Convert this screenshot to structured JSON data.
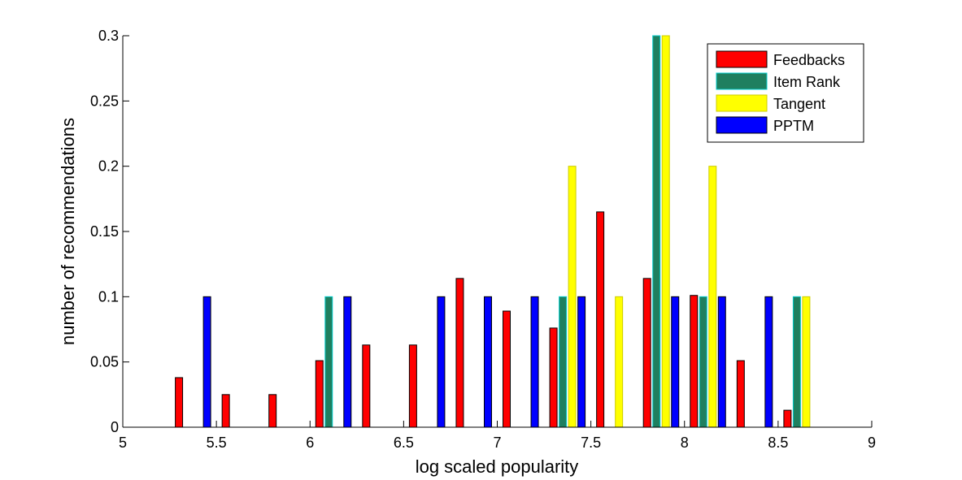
{
  "chart_data": {
    "type": "bar",
    "xlabel": "log scaled popularity",
    "ylabel": "number of recommendations",
    "xlim": [
      5,
      9
    ],
    "ylim": [
      0,
      0.3
    ],
    "xticks": [
      "5",
      "5.5",
      "6",
      "6.5",
      "7",
      "7.5",
      "8",
      "8.5",
      "9"
    ],
    "yticks": [
      "0",
      "0.05",
      "0.1",
      "0.15",
      "0.2",
      "0.25",
      "0.3"
    ],
    "grid": false,
    "legend_position": "top-right",
    "bin_centers": [
      5.125,
      5.375,
      5.625,
      5.875,
      6.125,
      6.375,
      6.625,
      6.875,
      7.125,
      7.375,
      7.625,
      7.875,
      8.125,
      8.375,
      8.625,
      8.875
    ],
    "series": [
      {
        "name": "Feedbacks",
        "color": "#ff0000",
        "edge": "#000000",
        "values": [
          0,
          0.038,
          0.025,
          0.025,
          0.051,
          0.063,
          0.063,
          0.114,
          0.089,
          0.076,
          0.165,
          0.114,
          0.101,
          0.051,
          0.013,
          0
        ]
      },
      {
        "name": "Item Rank",
        "color": "#1f7f5f",
        "edge": "#00cccc",
        "values": [
          0,
          0,
          0,
          0,
          0.1,
          0,
          0,
          0,
          0,
          0.1,
          0,
          0.3,
          0.1,
          0,
          0.1,
          0
        ]
      },
      {
        "name": "Tangent",
        "color": "#ffff00",
        "edge": "#cccc00",
        "values": [
          0,
          0,
          0,
          0,
          0,
          0,
          0,
          0,
          0,
          0.2,
          0.1,
          0.3,
          0.2,
          0,
          0.1,
          0
        ]
      },
      {
        "name": "PPTM",
        "color": "#0000ff",
        "edge": "#000000",
        "values": [
          0,
          0.1,
          0,
          0,
          0.1,
          0,
          0.1,
          0.1,
          0.1,
          0.1,
          0,
          0.1,
          0.1,
          0.1,
          0,
          0
        ]
      }
    ]
  }
}
